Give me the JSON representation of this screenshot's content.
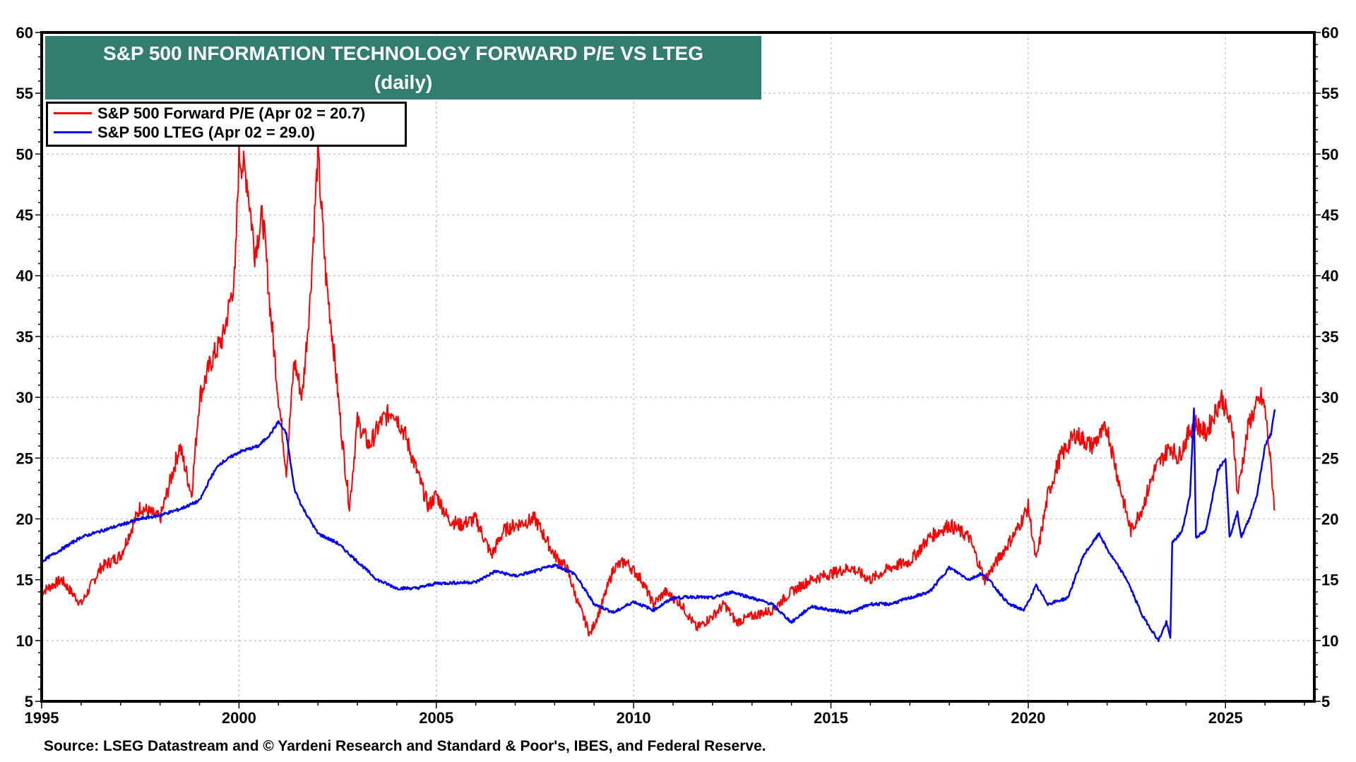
{
  "chart_data": {
    "type": "line",
    "title": "S&P 500 INFORMATION TECHNOLOGY FORWARD P/E VS LTEG",
    "subtitle": "(daily)",
    "xlabel": "",
    "ylabel": "",
    "xlim": [
      1995,
      2027.25
    ],
    "ylim": [
      5,
      60
    ],
    "x_ticks": [
      "1995",
      "2000",
      "2005",
      "2010",
      "2015",
      "2020",
      "2025"
    ],
    "y_ticks": [
      "5",
      "10",
      "15",
      "20",
      "25",
      "30",
      "35",
      "40",
      "45",
      "50",
      "55",
      "60"
    ],
    "grid": true,
    "legend_position": "top-left",
    "source": "Source: LSEG Datastream and © Yardeni Research and Standard & Poor's, IBES, and Federal Reserve.",
    "series": [
      {
        "name": "S&P 500 Forward P/E (Apr 02 = 20.7)",
        "color": "#ff0000",
        "points": [
          [
            1995.0,
            14
          ],
          [
            1995.5,
            15
          ],
          [
            1996.0,
            13
          ],
          [
            1996.5,
            16
          ],
          [
            1997.0,
            17
          ],
          [
            1997.5,
            21
          ],
          [
            1998.0,
            20
          ],
          [
            1998.5,
            26
          ],
          [
            1998.8,
            22
          ],
          [
            1999.0,
            30
          ],
          [
            1999.3,
            33
          ],
          [
            1999.6,
            35
          ],
          [
            1999.9,
            40
          ],
          [
            2000.0,
            50
          ],
          [
            2000.2,
            48
          ],
          [
            2000.4,
            42
          ],
          [
            2000.6,
            45
          ],
          [
            2000.8,
            37
          ],
          [
            2001.0,
            30
          ],
          [
            2001.2,
            24
          ],
          [
            2001.4,
            33
          ],
          [
            2001.6,
            30
          ],
          [
            2001.8,
            38
          ],
          [
            2002.0,
            50
          ],
          [
            2002.2,
            40
          ],
          [
            2002.4,
            34
          ],
          [
            2002.6,
            27
          ],
          [
            2002.8,
            21
          ],
          [
            2003.0,
            28
          ],
          [
            2003.3,
            26
          ],
          [
            2003.6,
            28
          ],
          [
            2003.9,
            29
          ],
          [
            2004.2,
            27
          ],
          [
            2004.5,
            24
          ],
          [
            2004.8,
            21
          ],
          [
            2005.0,
            22
          ],
          [
            2005.3,
            20
          ],
          [
            2005.6,
            19.5
          ],
          [
            2006.0,
            20
          ],
          [
            2006.4,
            17
          ],
          [
            2006.7,
            19
          ],
          [
            2007.0,
            19.5
          ],
          [
            2007.5,
            20
          ],
          [
            2008.0,
            17
          ],
          [
            2008.3,
            16
          ],
          [
            2008.6,
            13
          ],
          [
            2008.9,
            10.5
          ],
          [
            2009.2,
            13
          ],
          [
            2009.5,
            16
          ],
          [
            2009.8,
            16.5
          ],
          [
            2010.2,
            15
          ],
          [
            2010.5,
            13
          ],
          [
            2010.8,
            14
          ],
          [
            2011.2,
            13
          ],
          [
            2011.6,
            11
          ],
          [
            2012.0,
            12
          ],
          [
            2012.3,
            13
          ],
          [
            2012.6,
            11.5
          ],
          [
            2013.0,
            12
          ],
          [
            2013.5,
            12.5
          ],
          [
            2014.0,
            14
          ],
          [
            2014.5,
            15
          ],
          [
            2015.0,
            15.5
          ],
          [
            2015.5,
            16
          ],
          [
            2016.0,
            15
          ],
          [
            2016.5,
            16
          ],
          [
            2017.0,
            16.5
          ],
          [
            2017.5,
            18.5
          ],
          [
            2018.0,
            19.5
          ],
          [
            2018.5,
            18.5
          ],
          [
            2018.9,
            15
          ],
          [
            2019.3,
            17
          ],
          [
            2019.7,
            19
          ],
          [
            2020.0,
            21
          ],
          [
            2020.2,
            16.5
          ],
          [
            2020.5,
            22
          ],
          [
            2020.8,
            25
          ],
          [
            2021.2,
            27
          ],
          [
            2021.6,
            26
          ],
          [
            2022.0,
            27.5
          ],
          [
            2022.3,
            23
          ],
          [
            2022.6,
            19
          ],
          [
            2022.9,
            21
          ],
          [
            2023.2,
            24
          ],
          [
            2023.6,
            26
          ],
          [
            2023.8,
            25
          ],
          [
            2024.2,
            28
          ],
          [
            2024.5,
            27
          ],
          [
            2024.9,
            30
          ],
          [
            2025.2,
            27
          ],
          [
            2025.3,
            22
          ],
          [
            2025.6,
            28
          ],
          [
            2025.9,
            30
          ],
          [
            2026.0,
            29
          ],
          [
            2026.1,
            26
          ],
          [
            2026.25,
            20.7
          ]
        ]
      },
      {
        "name": "S&P 500 LTEG (Apr 02 = 29.0)",
        "color": "#0000ff",
        "points": [
          [
            1995.0,
            16.5
          ],
          [
            1995.5,
            17.5
          ],
          [
            1996.0,
            18.5
          ],
          [
            1996.5,
            19
          ],
          [
            1997.0,
            19.5
          ],
          [
            1997.5,
            20
          ],
          [
            1998.0,
            20.3
          ],
          [
            1998.5,
            20.8
          ],
          [
            1999.0,
            21.5
          ],
          [
            1999.3,
            23.5
          ],
          [
            1999.5,
            24.5
          ],
          [
            2000.0,
            25.5
          ],
          [
            2000.5,
            26
          ],
          [
            2000.8,
            27
          ],
          [
            2001.0,
            28
          ],
          [
            2001.2,
            27
          ],
          [
            2001.4,
            22.5
          ],
          [
            2001.6,
            21
          ],
          [
            2002.0,
            18.8
          ],
          [
            2002.5,
            18
          ],
          [
            2003.0,
            16.5
          ],
          [
            2003.5,
            15
          ],
          [
            2004.0,
            14.3
          ],
          [
            2004.5,
            14.3
          ],
          [
            2005.0,
            14.7
          ],
          [
            2006.0,
            14.8
          ],
          [
            2006.5,
            15.7
          ],
          [
            2007.0,
            15.3
          ],
          [
            2007.5,
            15.7
          ],
          [
            2008.0,
            16.2
          ],
          [
            2008.5,
            15.5
          ],
          [
            2009.0,
            13
          ],
          [
            2009.5,
            12.3
          ],
          [
            2010.0,
            13.2
          ],
          [
            2010.5,
            12.5
          ],
          [
            2011.0,
            13.5
          ],
          [
            2011.5,
            13.6
          ],
          [
            2012.0,
            13.5
          ],
          [
            2012.5,
            14
          ],
          [
            2013.0,
            13.5
          ],
          [
            2013.5,
            13
          ],
          [
            2014.0,
            11.5
          ],
          [
            2014.5,
            12.8
          ],
          [
            2015.0,
            12.5
          ],
          [
            2015.5,
            12.3
          ],
          [
            2016.0,
            13
          ],
          [
            2016.5,
            13
          ],
          [
            2017.0,
            13.5
          ],
          [
            2017.5,
            14
          ],
          [
            2018.0,
            16
          ],
          [
            2018.5,
            15
          ],
          [
            2018.8,
            15.5
          ],
          [
            2019.0,
            15
          ],
          [
            2019.5,
            13
          ],
          [
            2019.9,
            12.5
          ],
          [
            2020.2,
            14.5
          ],
          [
            2020.5,
            13
          ],
          [
            2021.0,
            13.5
          ],
          [
            2021.4,
            17
          ],
          [
            2021.8,
            18.8
          ],
          [
            2022.0,
            17.5
          ],
          [
            2022.5,
            15
          ],
          [
            2022.9,
            12
          ],
          [
            2023.3,
            10
          ],
          [
            2023.5,
            11.5
          ],
          [
            2023.6,
            10.2
          ],
          [
            2023.65,
            18
          ],
          [
            2023.9,
            19
          ],
          [
            2024.1,
            22
          ],
          [
            2024.2,
            29
          ],
          [
            2024.25,
            18.5
          ],
          [
            2024.5,
            19
          ],
          [
            2024.8,
            24
          ],
          [
            2025.0,
            25
          ],
          [
            2025.1,
            18.5
          ],
          [
            2025.3,
            20.5
          ],
          [
            2025.4,
            18.5
          ],
          [
            2025.6,
            20
          ],
          [
            2025.8,
            22
          ],
          [
            2026.0,
            26
          ],
          [
            2026.15,
            27
          ],
          [
            2026.25,
            29
          ]
        ]
      }
    ]
  }
}
